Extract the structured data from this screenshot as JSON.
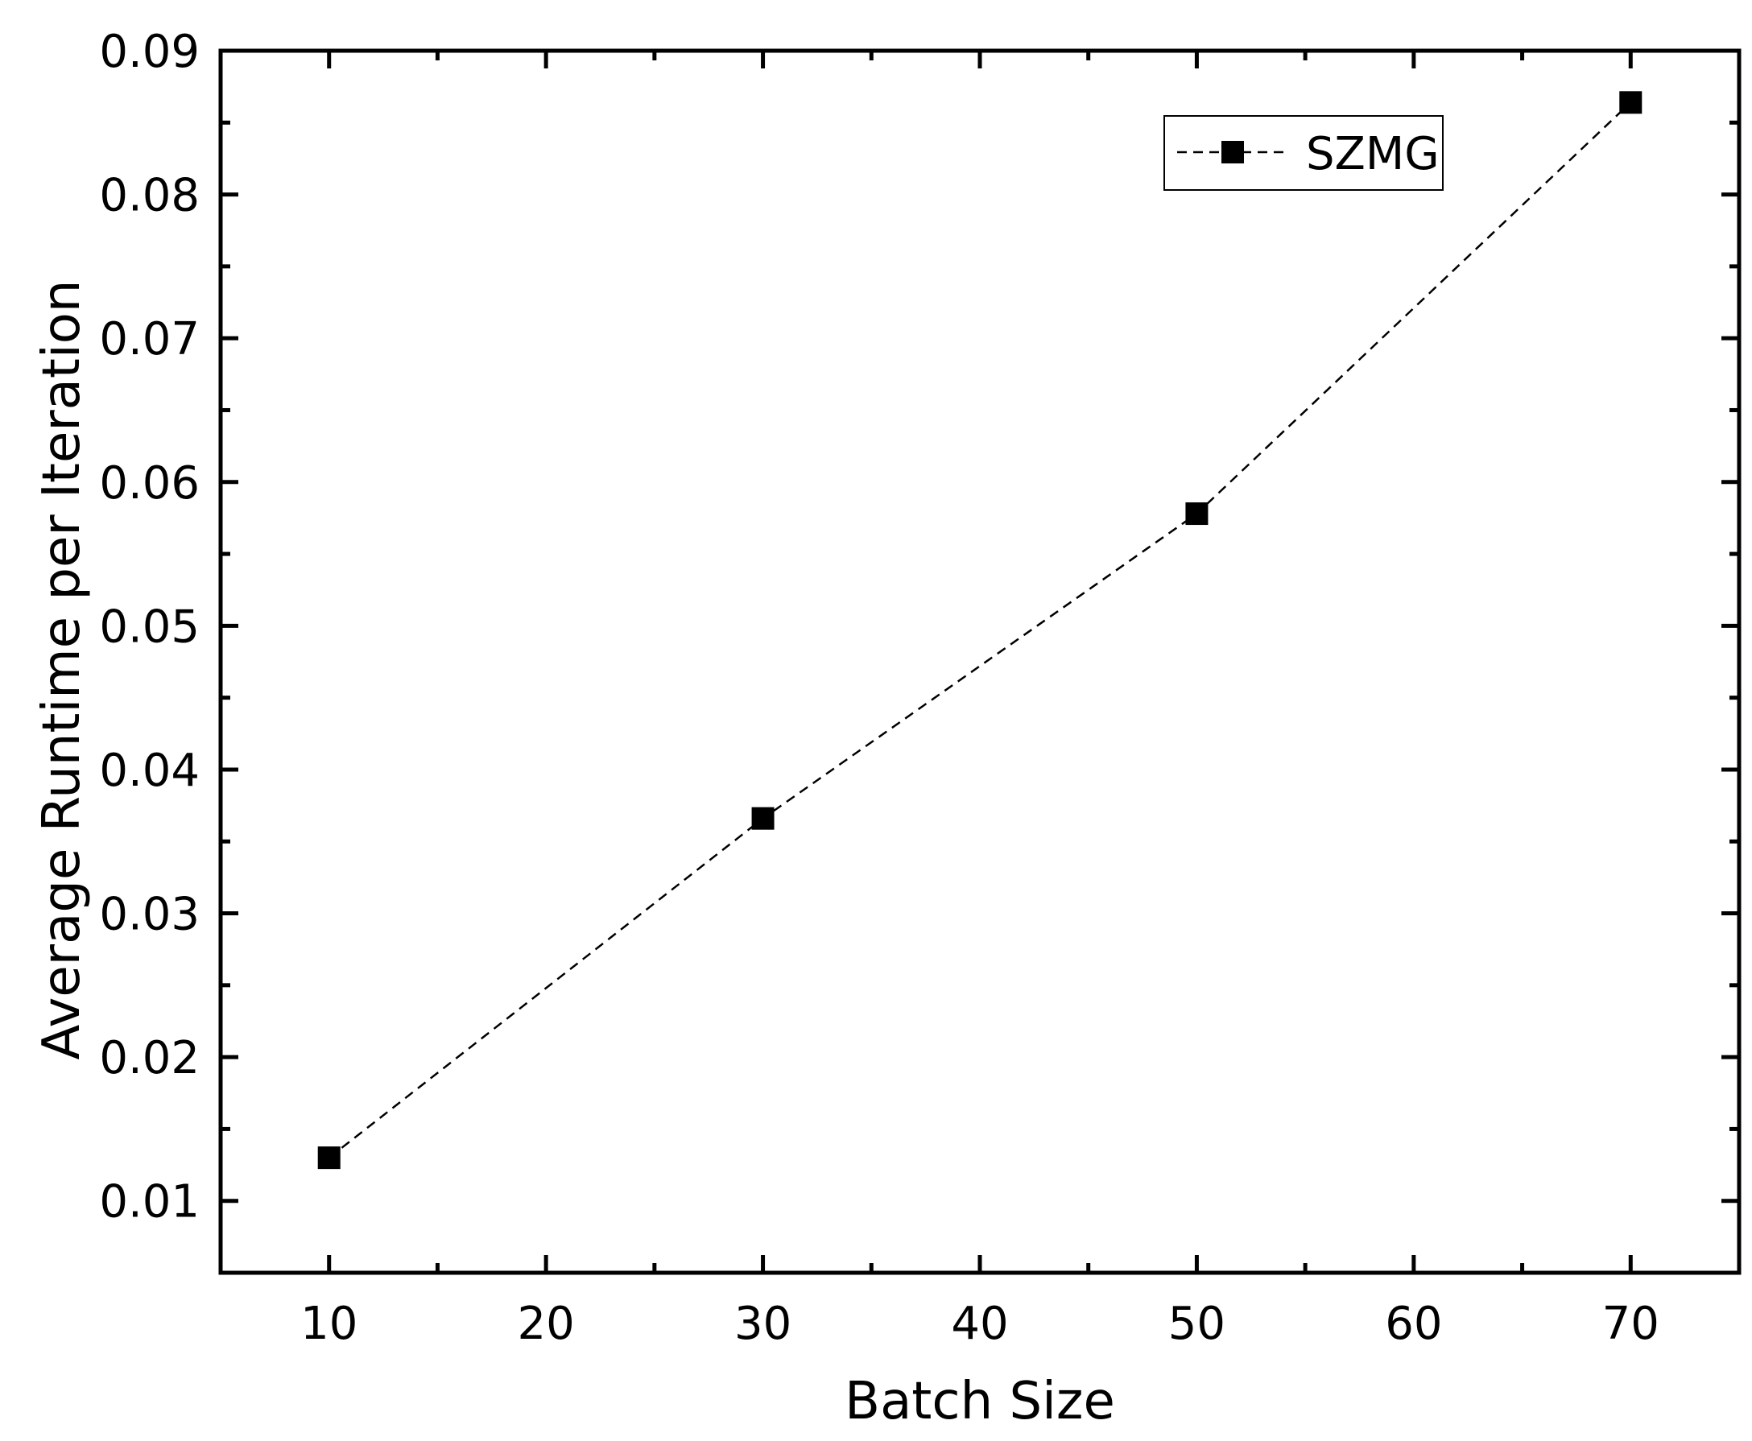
{
  "chart_data": {
    "type": "line",
    "title": "",
    "xlabel": "Batch Size",
    "ylabel": "Average Runtime per Iteration",
    "xlim": [
      5,
      75
    ],
    "ylim": [
      0.005,
      0.09
    ],
    "x_ticks_major": [
      10,
      20,
      30,
      40,
      50,
      60,
      70
    ],
    "x_tick_labels": [
      "10",
      "20",
      "30",
      "40",
      "50",
      "60",
      "70"
    ],
    "x_ticks_minor": [
      5,
      15,
      25,
      35,
      45,
      55,
      65,
      75
    ],
    "y_ticks_major": [
      0.01,
      0.02,
      0.03,
      0.04,
      0.05,
      0.06,
      0.07,
      0.08,
      0.09
    ],
    "y_tick_labels": [
      "0.01",
      "0.02",
      "0.03",
      "0.04",
      "0.05",
      "0.06",
      "0.07",
      "0.08",
      "0.09"
    ],
    "y_ticks_minor": [
      0.015,
      0.025,
      0.035,
      0.045,
      0.055,
      0.065,
      0.075,
      0.085
    ],
    "grid": false,
    "legend_position": "top-right",
    "series": [
      {
        "name": "SZMG",
        "x": [
          10,
          30,
          50,
          70
        ],
        "y": [
          0.013,
          0.0366,
          0.0578,
          0.0864
        ],
        "marker": "square",
        "line_style": "dashed",
        "color": "#000000"
      }
    ]
  }
}
